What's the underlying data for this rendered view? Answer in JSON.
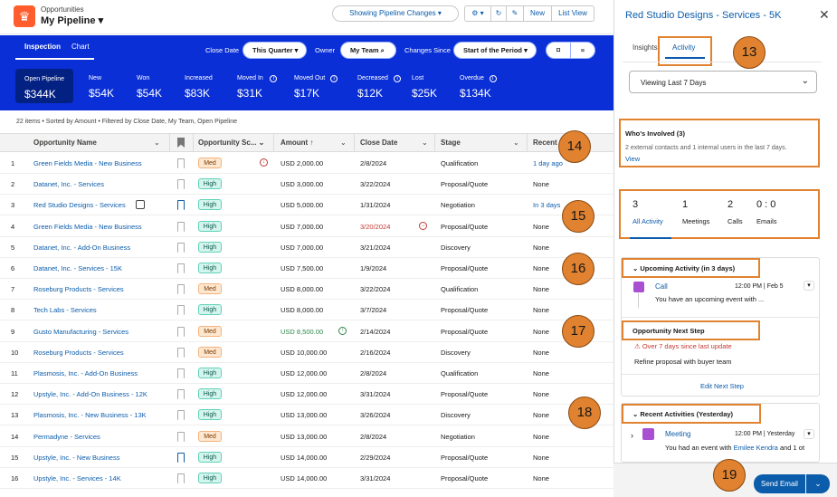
{
  "header": {
    "crumb": "Opportunities",
    "title": "My Pipeline",
    "pipeline_changes": "Showing Pipeline Changes",
    "new": "New",
    "list_view": "List View"
  },
  "band": {
    "tabs": [
      "Inspection",
      "Chart"
    ],
    "close_date_label": "Close Date",
    "close_date_value": "This Quarter",
    "owner_label": "Owner",
    "owner_value": "My Team",
    "changes_label": "Changes Since",
    "changes_value": "Start of the Period"
  },
  "metrics": [
    {
      "label": "Open Pipeline",
      "value": "$344K"
    },
    {
      "label": "New",
      "value": "$54K"
    },
    {
      "label": "Won",
      "value": "$54K"
    },
    {
      "label": "Increased",
      "value": "$83K"
    },
    {
      "label": "Moved In",
      "value": "$31K"
    },
    {
      "label": "Moved Out",
      "value": "$17K"
    },
    {
      "label": "Decreased",
      "value": "$12K"
    },
    {
      "label": "Lost",
      "value": "$25K"
    },
    {
      "label": "Overdue",
      "value": "$134K"
    }
  ],
  "summary": "22 items • Sorted by Amount • Filtered by Close Date, My Team, Open Pipeline",
  "columns": [
    "Opportunity Name",
    "Opportunity Sc...",
    "Amount",
    "Close Date",
    "Stage",
    "Recent"
  ],
  "rows": [
    {
      "n": "1",
      "name": "Green Fields Media - New Business",
      "score": "Med",
      "amount": "USD 2,000.00",
      "date": "2/8/2024",
      "stage": "Qualification",
      "recent": "1 day ago"
    },
    {
      "n": "2",
      "name": "Datanet, Inc. - Services",
      "score": "High",
      "amount": "USD 3,000.00",
      "date": "3/22/2024",
      "stage": "Proposal/Quote",
      "recent": "None"
    },
    {
      "n": "3",
      "name": "Red Studio Designs - Services",
      "score": "High",
      "amount": "USD 5,000.00",
      "date": "1/31/2024",
      "stage": "Negotiation",
      "recent": "In 3 days"
    },
    {
      "n": "4",
      "name": "Green Fields Media - New Business",
      "score": "High",
      "amount": "USD 7,000.00",
      "date": "3/20/2024",
      "stage": "Proposal/Quote",
      "recent": "None"
    },
    {
      "n": "5",
      "name": "Datanet, Inc. - Add-On Business",
      "score": "High",
      "amount": "USD 7,000.00",
      "date": "3/21/2024",
      "stage": "Discovery",
      "recent": "None"
    },
    {
      "n": "6",
      "name": "Datanet, Inc. - Services - 15K",
      "score": "High",
      "amount": "USD 7,500.00",
      "date": "1/9/2024",
      "stage": "Proposal/Quote",
      "recent": "None"
    },
    {
      "n": "7",
      "name": "Roseburg Products - Services",
      "score": "Med",
      "amount": "USD 8,000.00",
      "date": "3/22/2024",
      "stage": "Qualification",
      "recent": "None"
    },
    {
      "n": "8",
      "name": "Tech Labs - Services",
      "score": "High",
      "amount": "USD 8,000.00",
      "date": "3/7/2024",
      "stage": "Proposal/Quote",
      "recent": "None"
    },
    {
      "n": "9",
      "name": "Gusto Manufacturing - Services",
      "score": "Med",
      "amount": "USD 8,500.00",
      "date": "2/14/2024",
      "stage": "Proposal/Quote",
      "recent": "None"
    },
    {
      "n": "10",
      "name": "Roseburg Products - Services",
      "score": "Med",
      "amount": "USD 10,000.00",
      "date": "2/16/2024",
      "stage": "Discovery",
      "recent": "None"
    },
    {
      "n": "11",
      "name": "Plasmosis, Inc. - Add-On Business",
      "score": "High",
      "amount": "USD 12,000.00",
      "date": "2/8/2024",
      "stage": "Qualification",
      "recent": "None"
    },
    {
      "n": "12",
      "name": "Upstyle, Inc. - Add-On Business - 12K",
      "score": "High",
      "amount": "USD 12,000.00",
      "date": "3/31/2024",
      "stage": "Proposal/Quote",
      "recent": "None"
    },
    {
      "n": "13",
      "name": "Plasmosis, Inc. - New Business - 13K",
      "score": "High",
      "amount": "USD 13,000.00",
      "date": "3/26/2024",
      "stage": "Discovery",
      "recent": "None"
    },
    {
      "n": "14",
      "name": "Permadyne - Services",
      "score": "Med",
      "amount": "USD 13,000.00",
      "date": "2/8/2024",
      "stage": "Negotiation",
      "recent": "None"
    },
    {
      "n": "15",
      "name": "Upstyle, Inc. - New Business",
      "score": "High",
      "amount": "USD 14,000.00",
      "date": "2/29/2024",
      "stage": "Proposal/Quote",
      "recent": "None"
    },
    {
      "n": "16",
      "name": "Upstyle, Inc. - Services - 14K",
      "score": "High",
      "amount": "USD 14,000.00",
      "date": "3/31/2024",
      "stage": "Proposal/Quote",
      "recent": "None"
    }
  ],
  "panel": {
    "title": "Red Studio Designs - Services - 5K",
    "tabs": [
      "Insights",
      "Activity"
    ],
    "viewing": "Viewing Last 7 Days",
    "whos_title": "Who's Involved (3)",
    "whos_desc": "2 external contacts and 1 internal users in the last 7 days.",
    "whos_link": "View",
    "counts": [
      {
        "v": "3",
        "l": "All Activity"
      },
      {
        "v": "1",
        "l": "Meetings"
      },
      {
        "v": "2",
        "l": "Calls"
      },
      {
        "v": "0 : 0",
        "l": "Emails"
      }
    ],
    "upcoming_title": "Upcoming Activity (in 3 days)",
    "call_label": "Call",
    "call_time": "12:00 PM | Feb 5",
    "call_desc": "You have an upcoming event with ...",
    "next_step_title": "Opportunity Next Step",
    "overdue": "Over 7 days since last update",
    "next_step_text": "Refine proposal with buyer team",
    "edit_next": "Edit Next Step",
    "recent_title": "Recent Activities (Yesterday)",
    "meeting_label": "Meeting",
    "meeting_time": "12:00 PM | Yesterday",
    "meeting_desc": "You had an event with",
    "meeting_person": "Emilee Kendra",
    "meeting_more": "and 1 ot",
    "send_email": "Send Email"
  },
  "callouts": [
    "13",
    "14",
    "15",
    "16",
    "17",
    "18",
    "19"
  ]
}
